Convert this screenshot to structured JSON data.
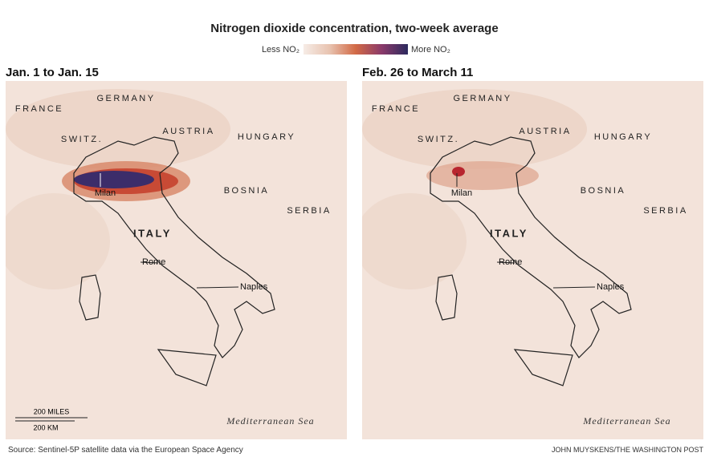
{
  "header": {
    "title": "Nitrogen dioxide concentration, two-week average",
    "legend": {
      "low": "Less NO₂",
      "high": "More NO₂"
    }
  },
  "panels": [
    {
      "title": "Jan. 1 to Jan. 15"
    },
    {
      "title": "Feb. 26 to March 11"
    }
  ],
  "map_labels": {
    "countries": [
      "FRANCE",
      "GERMANY",
      "SWITZ.",
      "AUSTRIA",
      "HUNGARY",
      "BOSNIA",
      "SERBIA",
      "ITALY"
    ],
    "cities": [
      "Milan",
      "Rome",
      "Naples"
    ],
    "sea": "Mediterranean Sea"
  },
  "scale": {
    "miles": "200 MILES",
    "km": "200 KM"
  },
  "footer": {
    "source": "Source: Sentinel-5P satellite data via the European Space Agency",
    "credit": "JOHN MUYSKENS/THE WASHINGTON POST"
  }
}
